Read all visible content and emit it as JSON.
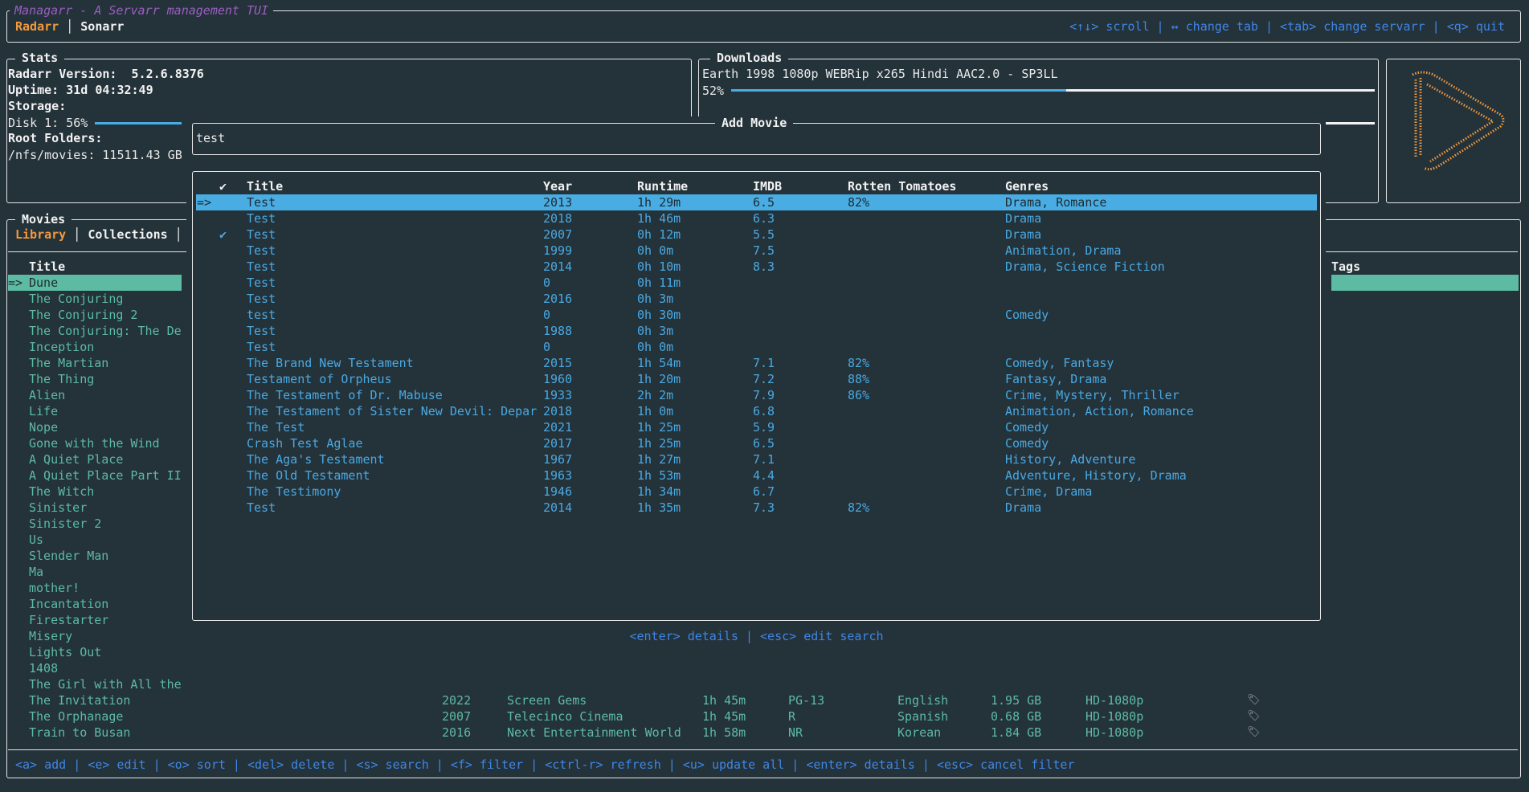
{
  "app": {
    "title": "Managarr - A Servarr management TUI"
  },
  "servarr_tabs": [
    {
      "label": "Radarr",
      "active": true
    },
    {
      "label": "Sonarr",
      "active": false
    }
  ],
  "global_help": "<↑↓> scroll | ↔ change tab | <tab> change servarr | <q> quit",
  "stats": {
    "title": "Stats",
    "version_label": "Radarr Version:",
    "version": "5.2.6.8376",
    "uptime_label": "Uptime:",
    "uptime": "31d 04:32:49",
    "storage_label": "Storage:",
    "disk_label": "Disk 1: 56%",
    "disk_percent": 56,
    "root_label": "Root Folders:",
    "root_folder": "/nfs/movies: 11511.43 GB"
  },
  "downloads": {
    "title": "Downloads",
    "items": [
      {
        "name": "Earth 1998 1080p WEBRip x265 Hindi AAC2.0 - SP3LL",
        "percent_label": "52%",
        "percent": 52
      }
    ]
  },
  "logo": {
    "icon": "radarr-logo-icon",
    "color": "#f39a3d"
  },
  "movies": {
    "title": "Movies",
    "tabs": [
      {
        "label": "Library",
        "active": true
      },
      {
        "label": "Collections",
        "active": false
      }
    ],
    "title_header": "Title",
    "tags_header": "Tags",
    "selected_marker": "=>",
    "titles": [
      "Dune",
      "The Conjuring",
      "The Conjuring 2",
      "The Conjuring: The De",
      "Inception",
      "The Martian",
      "The Thing",
      "Alien",
      "Life",
      "Nope",
      "Gone with the Wind",
      "A Quiet Place",
      "A Quiet Place Part II",
      "The Witch",
      "Sinister",
      "Sinister 2",
      "Us",
      "Slender Man",
      "Ma",
      "mother!",
      "Incantation",
      "Firestarter",
      "Misery",
      "Lights Out",
      "1408",
      "The Girl with All the",
      "The Invitation",
      "The Orphanage",
      "Train to Busan"
    ],
    "visible_rows": [
      {
        "title": "The Invitation",
        "year": "2022",
        "studio": "Screen Gems",
        "runtime": "1h 45m",
        "rating": "PG-13",
        "language": "English",
        "size": "1.95 GB",
        "quality": "HD-1080p",
        "tag_icon": "tag-icon"
      },
      {
        "title": "The Orphanage",
        "year": "2007",
        "studio": "Telecinco Cinema",
        "runtime": "1h 45m",
        "rating": "R",
        "language": "Spanish",
        "size": "0.68 GB",
        "quality": "HD-1080p",
        "tag_icon": "tag-icon"
      },
      {
        "title": "Train to Busan",
        "year": "2016",
        "studio": "Next Entertainment World",
        "runtime": "1h 58m",
        "rating": "NR",
        "language": "Korean",
        "size": "1.84 GB",
        "quality": "HD-1080p",
        "tag_icon": "tag-icon"
      }
    ],
    "help": "<a> add | <e> edit | <o> sort | <del> delete | <s> search | <f> filter | <ctrl-r> refresh | <u> update all | <enter> details | <esc> cancel filter"
  },
  "add_movie": {
    "title": "Add Movie",
    "search_value": "test",
    "columns": {
      "check": "✔",
      "title": "Title",
      "year": "Year",
      "runtime": "Runtime",
      "imdb": "IMDB",
      "rt": "Rotten Tomatoes",
      "genres": "Genres"
    },
    "selected_marker": "=>",
    "results": [
      {
        "check": "",
        "title": "Test",
        "year": "2013",
        "runtime": "1h 29m",
        "imdb": "6.5",
        "rt": "82%",
        "genres": "Drama, Romance",
        "selected": true
      },
      {
        "check": "",
        "title": "Test",
        "year": "2018",
        "runtime": "1h 46m",
        "imdb": "6.3",
        "rt": "",
        "genres": "Drama"
      },
      {
        "check": "✔",
        "title": "Test",
        "year": "2007",
        "runtime": "0h 12m",
        "imdb": "5.5",
        "rt": "",
        "genres": "Drama"
      },
      {
        "check": "",
        "title": "Test",
        "year": "1999",
        "runtime": "0h 0m",
        "imdb": "7.5",
        "rt": "",
        "genres": "Animation, Drama"
      },
      {
        "check": "",
        "title": "Test",
        "year": "2014",
        "runtime": "0h 10m",
        "imdb": "8.3",
        "rt": "",
        "genres": "Drama, Science Fiction"
      },
      {
        "check": "",
        "title": "Test",
        "year": "0",
        "runtime": "0h 11m",
        "imdb": "",
        "rt": "",
        "genres": ""
      },
      {
        "check": "",
        "title": "Test",
        "year": "2016",
        "runtime": "0h 3m",
        "imdb": "",
        "rt": "",
        "genres": ""
      },
      {
        "check": "",
        "title": "test",
        "year": "0",
        "runtime": "0h 30m",
        "imdb": "",
        "rt": "",
        "genres": "Comedy"
      },
      {
        "check": "",
        "title": "Test",
        "year": "1988",
        "runtime": "0h 3m",
        "imdb": "",
        "rt": "",
        "genres": ""
      },
      {
        "check": "",
        "title": "Test",
        "year": "0",
        "runtime": "0h 0m",
        "imdb": "",
        "rt": "",
        "genres": ""
      },
      {
        "check": "",
        "title": "The Brand New Testament",
        "year": "2015",
        "runtime": "1h 54m",
        "imdb": "7.1",
        "rt": "82%",
        "genres": "Comedy, Fantasy"
      },
      {
        "check": "",
        "title": "Testament of Orpheus",
        "year": "1960",
        "runtime": "1h 20m",
        "imdb": "7.2",
        "rt": "88%",
        "genres": "Fantasy, Drama"
      },
      {
        "check": "",
        "title": "The Testament of Dr. Mabuse",
        "year": "1933",
        "runtime": "2h 2m",
        "imdb": "7.9",
        "rt": "86%",
        "genres": "Crime, Mystery, Thriller"
      },
      {
        "check": "",
        "title": "The Testament of Sister New Devil: Depar",
        "year": "2018",
        "runtime": "1h 0m",
        "imdb": "6.8",
        "rt": "",
        "genres": "Animation, Action, Romance"
      },
      {
        "check": "",
        "title": "The Test",
        "year": "2021",
        "runtime": "1h 25m",
        "imdb": "5.9",
        "rt": "",
        "genres": "Comedy"
      },
      {
        "check": "",
        "title": "Crash Test Aglae",
        "year": "2017",
        "runtime": "1h 25m",
        "imdb": "6.5",
        "rt": "",
        "genres": "Comedy"
      },
      {
        "check": "",
        "title": "The Aga's Testament",
        "year": "1967",
        "runtime": "1h 27m",
        "imdb": "7.1",
        "rt": "",
        "genres": "History, Adventure"
      },
      {
        "check": "",
        "title": "The Old Testament",
        "year": "1963",
        "runtime": "1h 53m",
        "imdb": "4.4",
        "rt": "",
        "genres": "Adventure, History, Drama"
      },
      {
        "check": "",
        "title": "The Testimony",
        "year": "1946",
        "runtime": "1h 34m",
        "imdb": "6.7",
        "rt": "",
        "genres": "Crime, Drama"
      },
      {
        "check": "",
        "title": "Test",
        "year": "2014",
        "runtime": "1h 35m",
        "imdb": "7.3",
        "rt": "82%",
        "genres": "Drama"
      }
    ],
    "help": "<enter> details | <esc> edit search"
  },
  "colors": {
    "background": "#24323a",
    "teal": "#5dbba3",
    "blue": "#4aa9e2",
    "help": "#3f86e6",
    "orange": "#f39a3d",
    "purple": "#9b5fc0"
  }
}
